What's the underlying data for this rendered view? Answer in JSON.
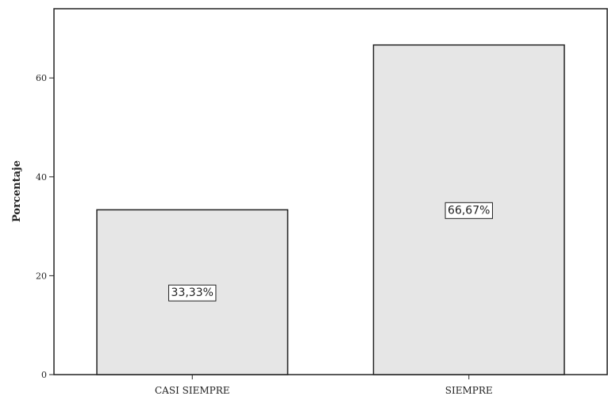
{
  "chart_data": {
    "type": "bar",
    "title": "",
    "xlabel": "",
    "ylabel": "Porcentaje",
    "categories": [
      "CASI SIEMPRE",
      "SIEMPRE"
    ],
    "values": [
      33.33,
      66.67
    ],
    "data_labels": [
      "33,33%",
      "66,67%"
    ],
    "yticks": [
      {
        "value": 0,
        "label": "0"
      },
      {
        "value": 20,
        "label": "20"
      },
      {
        "value": 40,
        "label": "40"
      },
      {
        "value": 60,
        "label": "60"
      }
    ],
    "ylim": [
      0,
      74
    ],
    "grid": false,
    "colors": {
      "bar_fill": "#e6e6e6",
      "bar_stroke": "#222222",
      "axis": "#222222"
    }
  }
}
